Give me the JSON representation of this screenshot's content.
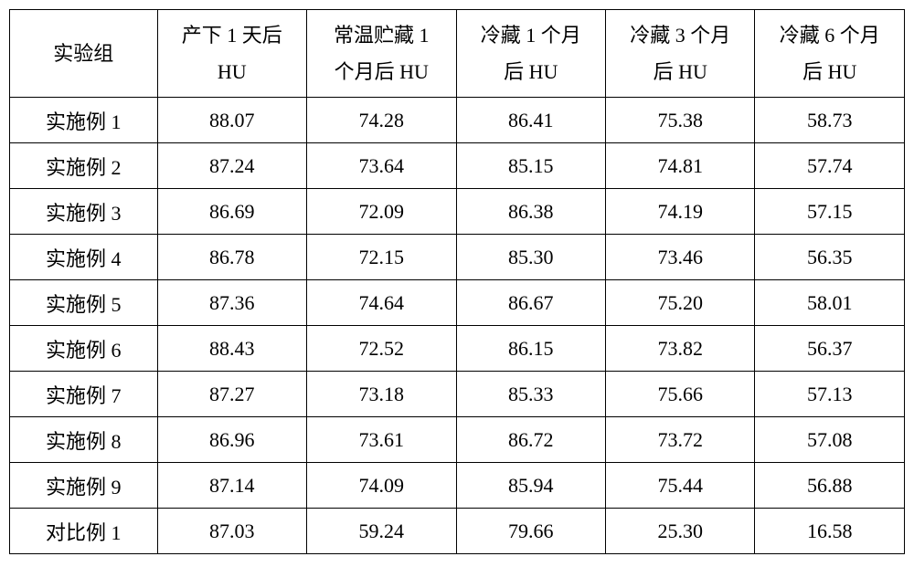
{
  "table": {
    "type": "table",
    "background_color": "#ffffff",
    "border_color": "#000000",
    "text_color": "#000000",
    "font_family": "SimSun",
    "header_fontsize": 22,
    "cell_fontsize": 22,
    "border_width": 1.5,
    "columns": [
      {
        "key": "group",
        "line1": "",
        "line2": "实验组",
        "width_pct": 16.5,
        "align": "center"
      },
      {
        "key": "day1",
        "line1": "产下 1 天后",
        "line2": "HU",
        "width_pct": 16.7,
        "align": "center"
      },
      {
        "key": "room1m",
        "line1": "常温贮藏 1",
        "line2": "个月后 HU",
        "width_pct": 16.7,
        "align": "center"
      },
      {
        "key": "cold1m",
        "line1": "冷藏 1 个月",
        "line2": "后 HU",
        "width_pct": 16.7,
        "align": "center"
      },
      {
        "key": "cold3m",
        "line1": "冷藏 3 个月",
        "line2": "后 HU",
        "width_pct": 16.7,
        "align": "center"
      },
      {
        "key": "cold6m",
        "line1": "冷藏 6 个月",
        "line2": "后 HU",
        "width_pct": 16.7,
        "align": "center"
      }
    ],
    "rows": [
      {
        "group": "实施例 1",
        "day1": "88.07",
        "room1m": "74.28",
        "cold1m": "86.41",
        "cold3m": "75.38",
        "cold6m": "58.73"
      },
      {
        "group": "实施例 2",
        "day1": "87.24",
        "room1m": "73.64",
        "cold1m": "85.15",
        "cold3m": "74.81",
        "cold6m": "57.74"
      },
      {
        "group": "实施例 3",
        "day1": "86.69",
        "room1m": "72.09",
        "cold1m": "86.38",
        "cold3m": "74.19",
        "cold6m": "57.15"
      },
      {
        "group": "实施例 4",
        "day1": "86.78",
        "room1m": "72.15",
        "cold1m": "85.30",
        "cold3m": "73.46",
        "cold6m": "56.35"
      },
      {
        "group": "实施例 5",
        "day1": "87.36",
        "room1m": "74.64",
        "cold1m": "86.67",
        "cold3m": "75.20",
        "cold6m": "58.01"
      },
      {
        "group": "实施例 6",
        "day1": "88.43",
        "room1m": "72.52",
        "cold1m": "86.15",
        "cold3m": "73.82",
        "cold6m": "56.37"
      },
      {
        "group": "实施例 7",
        "day1": "87.27",
        "room1m": "73.18",
        "cold1m": "85.33",
        "cold3m": "75.66",
        "cold6m": "57.13"
      },
      {
        "group": "实施例 8",
        "day1": "86.96",
        "room1m": "73.61",
        "cold1m": "86.72",
        "cold3m": "73.72",
        "cold6m": "57.08"
      },
      {
        "group": "实施例 9",
        "day1": "87.14",
        "room1m": "74.09",
        "cold1m": "85.94",
        "cold3m": "75.44",
        "cold6m": "56.88"
      },
      {
        "group": "对比例 1",
        "day1": "87.03",
        "room1m": "59.24",
        "cold1m": "79.66",
        "cold3m": "25.30",
        "cold6m": "16.58"
      }
    ]
  }
}
